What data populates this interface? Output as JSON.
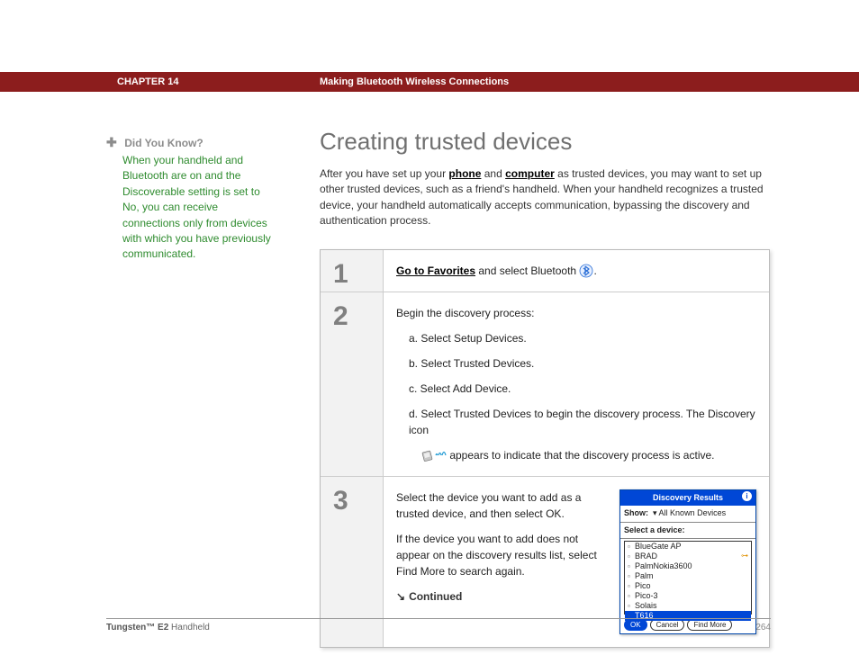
{
  "header": {
    "chapter": "CHAPTER 14",
    "title": "Making Bluetooth Wireless Connections",
    "bar_color": "#8c1d1d"
  },
  "sidebar": {
    "dyk_label": "Did You Know?",
    "dyk_text": "When your handheld and Bluetooth are on and the Discoverable setting is set to No, you can receive connections only from devices with which you have previously communicated.",
    "text_color": "#2e8b2e",
    "label_color": "#8c8c8c"
  },
  "main": {
    "heading": "Creating trusted devices",
    "intro_pre": "After you have set up your ",
    "link_phone": "phone",
    "intro_mid1": " and ",
    "link_computer": "computer",
    "intro_post": " as trusted devices, you may want to set up other trusted devices, such as a friend's handheld. When your handheld recognizes a trusted device, your handheld automatically accepts communication, bypassing the discovery and authentication process.",
    "heading_color": "#707070"
  },
  "steps": {
    "step_bg": "#f2f2f2",
    "num_color": "#808080",
    "border_color": "#bbbbbb",
    "s1": {
      "num": "1",
      "link": "Go to Favorites",
      "text_post": " and select Bluetooth ",
      "text_end": "."
    },
    "s2": {
      "num": "2",
      "intro": "Begin the discovery process:",
      "a": "a.  Select Setup Devices.",
      "b": "b.  Select Trusted Devices.",
      "c": "c.  Select Add Device.",
      "d_pre": "d.  Select Trusted Devices to begin the discovery process. The Discovery icon",
      "d_post": " appears to indicate that the discovery process is active."
    },
    "s3": {
      "num": "3",
      "p1": "Select the device you want to add as a trusted device, and then select OK.",
      "p2": "If the device you want to add does not appear on the discovery results list, select Find More to search again.",
      "continued": "Continued"
    }
  },
  "palm_dialog": {
    "title": "Discovery Results",
    "show_label": "Show:",
    "show_value": "All Known Devices",
    "select_label": "Select a device:",
    "titlebar_color": "#0047d6",
    "items": [
      {
        "label": "BlueGate AP",
        "key": false,
        "selected": false
      },
      {
        "label": "BRAD",
        "key": true,
        "selected": false
      },
      {
        "label": "PalmNokia3600",
        "key": false,
        "selected": false
      },
      {
        "label": "Palm",
        "key": false,
        "selected": false
      },
      {
        "label": "Pico",
        "key": false,
        "selected": false
      },
      {
        "label": "Pico-3",
        "key": false,
        "selected": false
      },
      {
        "label": "Solais",
        "key": false,
        "selected": false
      },
      {
        "label": "T616",
        "key": false,
        "selected": true
      }
    ],
    "btn_ok": "OK",
    "btn_cancel": "Cancel",
    "btn_findmore": "Find More"
  },
  "footer": {
    "product_bold": "Tungsten™ E2",
    "product_rest": " Handheld",
    "page": "264"
  },
  "icons": {
    "bluetooth_fill": "#2a6fd6",
    "discovery_wave": "#2a9fd6"
  }
}
